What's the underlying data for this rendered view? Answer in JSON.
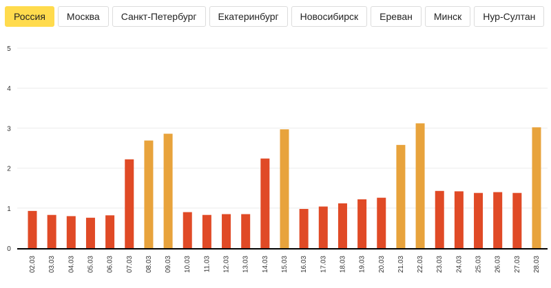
{
  "tabs": [
    {
      "label": "Россия",
      "active": true
    },
    {
      "label": "Москва",
      "active": false
    },
    {
      "label": "Санкт-Петербург",
      "active": false
    },
    {
      "label": "Екатеринбург",
      "active": false
    },
    {
      "label": "Новосибирск",
      "active": false
    },
    {
      "label": "Ереван",
      "active": false
    },
    {
      "label": "Минск",
      "active": false
    },
    {
      "label": "Нур-Султан",
      "active": false
    }
  ],
  "colors": {
    "weekday": "#e04a26",
    "weekend": "#e8a33c",
    "grid": "#ececec",
    "axis": "#000000",
    "tab_active": "#ffdb4d"
  },
  "chart_data": {
    "type": "bar",
    "title": "",
    "xlabel": "",
    "ylabel": "",
    "ylim": [
      0,
      5
    ],
    "yticks": [
      0,
      1,
      2,
      3,
      4,
      5
    ],
    "grid": true,
    "categories": [
      "02.03",
      "03.03",
      "04.03",
      "05.03",
      "06.03",
      "07.03",
      "08.03",
      "09.03",
      "10.03",
      "11.03",
      "12.03",
      "13.03",
      "14.03",
      "15.03",
      "16.03",
      "17.03",
      "18.03",
      "19.03",
      "20.03",
      "21.03",
      "22.03",
      "23.03",
      "24.03",
      "25.03",
      "26.03",
      "27.03",
      "28.03"
    ],
    "values": [
      0.93,
      0.83,
      0.8,
      0.76,
      0.82,
      2.22,
      2.69,
      2.86,
      0.9,
      0.83,
      0.85,
      0.85,
      2.24,
      2.97,
      0.98,
      1.04,
      1.12,
      1.22,
      1.26,
      2.58,
      3.12,
      1.43,
      1.42,
      1.38,
      1.4,
      1.38,
      3.02
    ],
    "highlighted": [
      false,
      false,
      false,
      false,
      false,
      false,
      true,
      true,
      false,
      false,
      false,
      false,
      false,
      true,
      false,
      false,
      false,
      false,
      false,
      true,
      true,
      false,
      false,
      false,
      false,
      false,
      true
    ]
  }
}
